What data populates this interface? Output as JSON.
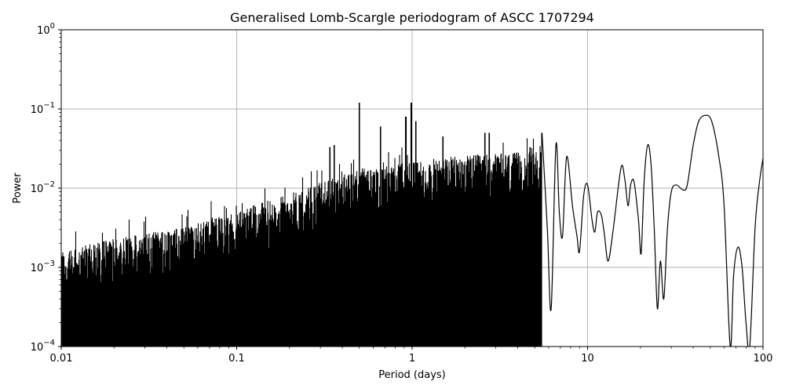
{
  "chart_data": {
    "type": "line",
    "title": "Generalised Lomb-Scargle periodogram of ASCC 1707294",
    "xlabel": "Period (days)",
    "ylabel": "Power",
    "xscale": "log",
    "yscale": "log",
    "xlim": [
      0.01,
      100
    ],
    "ylim": [
      0.0001,
      1
    ],
    "grid": true,
    "x_ticks": [
      {
        "value": 0.01,
        "label": "0.01"
      },
      {
        "value": 0.1,
        "label": "0.1"
      },
      {
        "value": 1,
        "label": "1"
      },
      {
        "value": 10,
        "label": "10"
      },
      {
        "value": 100,
        "label": "100"
      }
    ],
    "y_ticks": [
      {
        "value": 0.0001,
        "base": "10",
        "exp": "−4"
      },
      {
        "value": 0.001,
        "base": "10",
        "exp": "−3"
      },
      {
        "value": 0.01,
        "base": "10",
        "exp": "−2"
      },
      {
        "value": 0.1,
        "base": "10",
        "exp": "−1"
      },
      {
        "value": 1,
        "base": "10",
        "exp": "0"
      }
    ],
    "series_color": "#000000",
    "grid_color": "#b0b0b0",
    "noise_envelope": [
      [
        0.01,
        0.0011
      ],
      [
        0.02,
        0.0016
      ],
      [
        0.05,
        0.0022
      ],
      [
        0.1,
        0.0035
      ],
      [
        0.2,
        0.006
      ],
      [
        0.5,
        0.012
      ],
      [
        1,
        0.015
      ],
      [
        2,
        0.018
      ],
      [
        5,
        0.02
      ]
    ],
    "peaks": [
      {
        "x": 0.34,
        "y": 0.033
      },
      {
        "x": 0.36,
        "y": 0.035
      },
      {
        "x": 0.5,
        "y": 0.12
      },
      {
        "x": 0.66,
        "y": 0.06
      },
      {
        "x": 0.92,
        "y": 0.08
      },
      {
        "x": 0.99,
        "y": 0.12
      },
      {
        "x": 1.05,
        "y": 0.07
      },
      {
        "x": 1.5,
        "y": 0.045
      },
      {
        "x": 2.6,
        "y": 0.05
      },
      {
        "x": 2.75,
        "y": 0.05
      },
      {
        "x": 4.7,
        "y": 0.033
      },
      {
        "x": 5.5,
        "y": 0.05
      },
      {
        "x": 6.6,
        "y": 0.035
      }
    ],
    "smooth_curve": [
      [
        5.5,
        0.05
      ],
      [
        5.9,
        0.003
      ],
      [
        6.2,
        0.0003
      ],
      [
        6.6,
        0.035
      ],
      [
        6.9,
        0.005
      ],
      [
        7.2,
        0.0025
      ],
      [
        7.6,
        0.025
      ],
      [
        8.2,
        0.006
      ],
      [
        8.7,
        0.0025
      ],
      [
        9.0,
        0.0016
      ],
      [
        9.5,
        0.008
      ],
      [
        10.0,
        0.011
      ],
      [
        10.6,
        0.004
      ],
      [
        11.0,
        0.0028
      ],
      [
        11.4,
        0.005
      ],
      [
        12.0,
        0.0045
      ],
      [
        12.5,
        0.0025
      ],
      [
        13.1,
        0.0012
      ],
      [
        14.0,
        0.003
      ],
      [
        15.5,
        0.018
      ],
      [
        16.3,
        0.013
      ],
      [
        17.0,
        0.006
      ],
      [
        17.6,
        0.011
      ],
      [
        18.4,
        0.012
      ],
      [
        19.5,
        0.004
      ],
      [
        20.2,
        0.0015
      ],
      [
        21.0,
        0.012
      ],
      [
        22.0,
        0.035
      ],
      [
        23.0,
        0.02
      ],
      [
        24.0,
        0.003
      ],
      [
        25.0,
        0.0003
      ],
      [
        26.0,
        0.0012
      ],
      [
        27.2,
        0.0004
      ],
      [
        28.5,
        0.003
      ],
      [
        30.0,
        0.009
      ],
      [
        32.0,
        0.011
      ],
      [
        35.0,
        0.0095
      ],
      [
        37.0,
        0.011
      ],
      [
        40.0,
        0.035
      ],
      [
        43.0,
        0.07
      ],
      [
        47.0,
        0.083
      ],
      [
        51.0,
        0.07
      ],
      [
        56.0,
        0.025
      ],
      [
        60.0,
        0.006
      ],
      [
        65.0,
        0.0001
      ],
      [
        68.0,
        0.0008
      ],
      [
        72.0,
        0.0018
      ],
      [
        76.0,
        0.001
      ],
      [
        80.0,
        0.0002
      ],
      [
        84.0,
        0.0001
      ],
      [
        90.0,
        0.003
      ],
      [
        95.0,
        0.011
      ],
      [
        100.0,
        0.024
      ]
    ]
  }
}
